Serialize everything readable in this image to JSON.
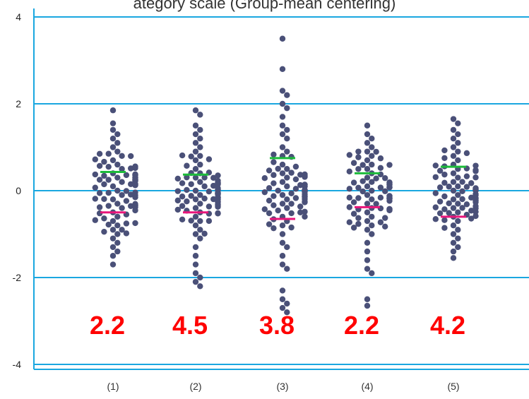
{
  "header": {
    "caption": "ategory scale (Group-mean centering)"
  },
  "chart_data": {
    "type": "scatter",
    "title": "",
    "xlabel": "",
    "ylabel": "",
    "categories": [
      "(1)",
      "(2)",
      "(3)",
      "(4)",
      "(5)"
    ],
    "y_ticks": [
      "4",
      "2",
      "0",
      "-2",
      "-4"
    ],
    "ylim": [
      -4.1,
      4.1
    ],
    "grid": true,
    "colors": {
      "axis_grid": "#1aa7e0",
      "points": "#4a5078",
      "upper_mean": "#1dbb3b",
      "lower_mean": "#e8157a",
      "labels": "#ff0000"
    },
    "groups": [
      {
        "category": "(1)",
        "label": "2.2",
        "upper_mean": 0.43,
        "lower_mean": -0.5,
        "values": [
          1.85,
          1.55,
          1.4,
          1.3,
          1.2,
          1.1,
          1.0,
          0.9,
          0.85,
          0.8,
          0.7,
          0.6,
          0.55,
          0.5,
          0.4,
          0.3,
          0.25,
          0.2,
          0.1,
          0.0,
          -0.05,
          -0.1,
          -0.2,
          -0.3,
          -0.35,
          -0.4,
          -0.5,
          -0.6,
          -0.7,
          -0.8,
          -0.9,
          -1.0,
          -1.1,
          -1.2,
          -1.3,
          -1.4,
          -1.5,
          -1.7
        ]
      },
      {
        "category": "(2)",
        "label": "4.5",
        "upper_mean": 0.37,
        "lower_mean": -0.5,
        "values": [
          1.85,
          1.75,
          1.5,
          1.4,
          1.3,
          1.2,
          1.1,
          1.0,
          0.9,
          0.8,
          0.7,
          0.6,
          0.5,
          0.4,
          0.3,
          0.2,
          0.15,
          0.1,
          0.0,
          -0.1,
          -0.2,
          -0.3,
          -0.4,
          -0.5,
          -0.6,
          -0.7,
          -0.8,
          -0.9,
          -1.0,
          -1.1,
          -1.3,
          -1.5,
          -1.7,
          -1.9,
          -2.0,
          -2.1,
          -2.2
        ]
      },
      {
        "category": "(3)",
        "label": "3.8",
        "upper_mean": 0.75,
        "lower_mean": -0.65,
        "values": [
          3.5,
          2.8,
          2.3,
          2.2,
          2.0,
          1.9,
          1.7,
          1.5,
          1.4,
          1.3,
          1.2,
          1.0,
          0.9,
          0.8,
          0.6,
          0.5,
          0.4,
          0.3,
          0.2,
          0.1,
          -0.1,
          -0.2,
          -0.3,
          -0.4,
          -0.6,
          -0.8,
          -1.0,
          -1.2,
          -1.3,
          -1.5,
          -1.7,
          -1.8,
          -2.3,
          -2.5,
          -2.6,
          -2.7,
          -2.8
        ]
      },
      {
        "category": "(4)",
        "label": "2.2",
        "upper_mean": 0.4,
        "lower_mean": -0.38,
        "values": [
          1.5,
          1.3,
          1.2,
          1.1,
          1.0,
          0.9,
          0.8,
          0.7,
          0.6,
          0.5,
          0.4,
          0.3,
          0.2,
          0.1,
          0.0,
          -0.1,
          -0.2,
          -0.3,
          -0.4,
          -0.5,
          -0.6,
          -0.7,
          -0.8,
          -0.9,
          -1.0,
          -1.2,
          -1.4,
          -1.6,
          -1.8,
          -1.9,
          -2.5,
          -2.65
        ]
      },
      {
        "category": "(5)",
        "label": "4.2",
        "upper_mean": 0.55,
        "lower_mean": -0.6,
        "values": [
          1.65,
          1.55,
          1.4,
          1.3,
          1.2,
          1.1,
          1.0,
          0.9,
          0.8,
          0.7,
          0.6,
          0.5,
          0.4,
          0.3,
          0.2,
          0.1,
          0.0,
          -0.1,
          -0.2,
          -0.3,
          -0.4,
          -0.5,
          -0.6,
          -0.7,
          -0.8,
          -0.9,
          -1.0,
          -1.1,
          -1.2,
          -1.3,
          -1.4,
          -1.55
        ]
      }
    ]
  }
}
